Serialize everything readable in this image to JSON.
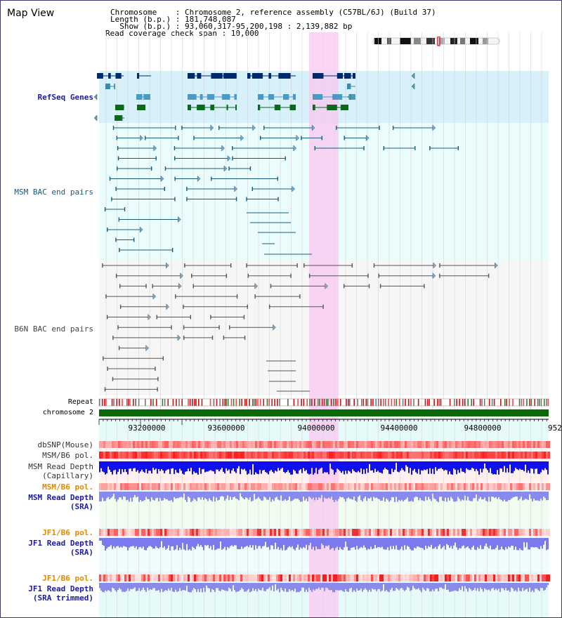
{
  "view": {
    "title": "Map View",
    "info": {
      "chromosome": "Chromosome    : Chromosome 2, reference assembly (C57BL/6J) (Build 37)",
      "length": "Length (b.p.) : 181,748,087",
      "show": "  Show (b.p.) : 93,060,317-95,200,198 : 2,139,882 bp",
      "coverage": "Read coverage check span : 10,000"
    }
  },
  "tracks": {
    "refseq": {
      "label": "RefSeq Genes",
      "color": "#1a1aa6"
    },
    "msm_bac": {
      "label": "MSM BAC end pairs",
      "color": "#1a5a7a"
    },
    "b6n_bac": {
      "label": "B6N BAC end pairs",
      "color": "#444444"
    },
    "repeat": {
      "label": "Repeat"
    },
    "chromosome": {
      "label": "chromosome 2"
    },
    "dbsnp": {
      "label": "dbSNP(Mouse)"
    },
    "msm_b6_pol": {
      "label": "MSM/B6 pol."
    },
    "msm_read_depth_cap_1": {
      "label": "MSM Read Depth"
    },
    "msm_read_depth_cap_2": {
      "label": "(Capillary)"
    },
    "msm_b6_pol_sra": {
      "label": "MSM/B6 pol.",
      "color": "#e08a00"
    },
    "msm_read_depth_sra_1": {
      "label": "MSM Read Depth",
      "color": "#1a1aa6"
    },
    "msm_read_depth_sra_2": {
      "label": "(SRA)",
      "color": "#1a1aa6"
    },
    "jf1_b6_pol_1": {
      "label": "JF1/B6 pol.",
      "color": "#e08a00"
    },
    "jf1_read_depth_1": {
      "label": "JF1 Read Depth",
      "color": "#1a1aa6"
    },
    "jf1_read_depth_2": {
      "label": "(SRA)",
      "color": "#1a1aa6"
    },
    "jf1_b6_pol_2": {
      "label": "JF1/B6 pol.",
      "color": "#e08a00"
    },
    "jf1_read_depth_trim_1": {
      "label": "JF1 Read Depth",
      "color": "#1a1aa6"
    },
    "jf1_read_depth_trim_2": {
      "label": "(SRA trimmed)",
      "color": "#1a1aa6"
    }
  },
  "ruler": {
    "ticks": [
      "93200000",
      "93600000",
      "94000000",
      "94400000",
      "94800000",
      "952"
    ]
  }
}
